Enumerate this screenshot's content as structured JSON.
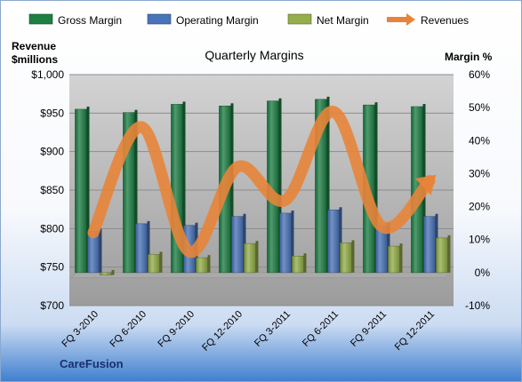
{
  "chart_data": {
    "type": "bar",
    "title": "Quarterly Margins",
    "company": "CareFusion",
    "left_axis_label_line1": "Revenue",
    "left_axis_label_line2": "$millions",
    "right_axis_label": "Margin %",
    "categories": [
      "FQ 3-2010",
      "FQ 6-2010",
      "FQ 9-2010",
      "FQ 12-2010",
      "FQ 3-2011",
      "FQ 6-2011",
      "FQ 9-2011",
      "FQ 12-2011"
    ],
    "left_ticks": [
      "$700",
      "$750",
      "$800",
      "$850",
      "$900",
      "$950",
      "$1,000"
    ],
    "left_ylim": [
      700,
      1000
    ],
    "right_ticks": [
      "-10%",
      "0%",
      "10%",
      "20%",
      "30%",
      "40%",
      "50%",
      "60%"
    ],
    "right_ylim": [
      -10,
      60
    ],
    "series": [
      {
        "name": "Gross Margin",
        "axis": "right",
        "kind": "bar",
        "color": "#1E7F45",
        "values": [
          49.5,
          48.5,
          51,
          50.5,
          52,
          52.5,
          50.8,
          50.3
        ]
      },
      {
        "name": "Operating Margin",
        "axis": "right",
        "kind": "bar",
        "color": "#4A74B8",
        "values": [
          12.5,
          14.8,
          14.3,
          17,
          18,
          19,
          14.3,
          17
        ]
      },
      {
        "name": "Net Margin",
        "axis": "right",
        "kind": "bar",
        "color": "#93AE4A",
        "values": [
          -0.7,
          5.5,
          4.5,
          8.8,
          5,
          9,
          8,
          10.5
        ]
      },
      {
        "name": "Revenues",
        "axis": "left",
        "kind": "line",
        "color": "#E8843A",
        "values": [
          795,
          932,
          770,
          880,
          837,
          952,
          803,
          862
        ]
      }
    ]
  }
}
